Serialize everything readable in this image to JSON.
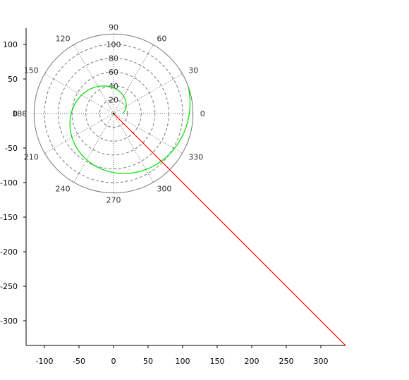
{
  "chart_data": {
    "type": "line",
    "title": "",
    "xlabel": "",
    "ylabel": "",
    "xlim": [
      -125,
      340
    ],
    "ylim": [
      -340,
      125
    ],
    "x_ticks": [
      -100,
      -50,
      0,
      50,
      100,
      150,
      200,
      250,
      300
    ],
    "y_ticks": [
      100,
      50,
      0,
      -50,
      -100,
      -150,
      -200,
      -250,
      -300
    ],
    "grid": false,
    "legend": "none",
    "polar_grid": {
      "center": [
        0,
        0
      ],
      "max_radius": 115,
      "radial_rings": [
        20,
        40,
        60,
        80,
        100
      ],
      "ring_labels": [
        "20",
        "40",
        "60",
        "80",
        "100"
      ],
      "angles": [
        0,
        30,
        60,
        90,
        120,
        150,
        180,
        210,
        240,
        270,
        300,
        330
      ],
      "angle_labels": [
        "0",
        "30",
        "60",
        "90",
        "120",
        "150",
        "180",
        "210",
        "240",
        "270",
        "300",
        "330"
      ]
    },
    "series": [
      {
        "color": "#00dd00",
        "kind": "spiral",
        "description_points": {
          "theta_start_deg": 0,
          "theta_end_deg": 380,
          "r_start": 13,
          "r_end": 115
        }
      },
      {
        "color": "#ff0000",
        "kind": "line",
        "x": [
          0,
          335
        ],
        "y": [
          0,
          -335
        ]
      }
    ]
  }
}
